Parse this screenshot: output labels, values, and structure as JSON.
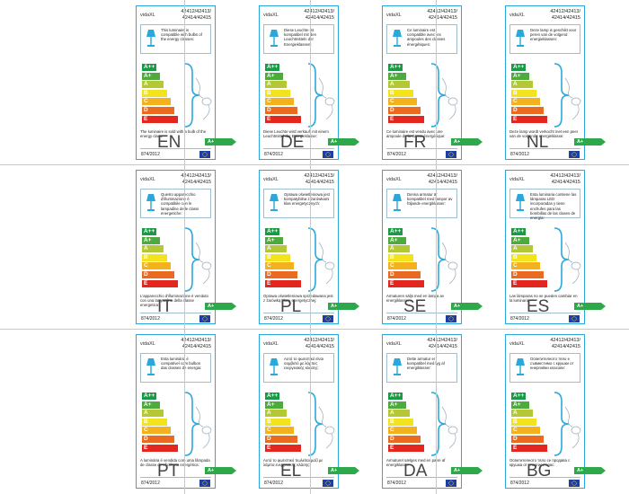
{
  "brand": "vidaXL",
  "model_line1": "42412/42413/",
  "model_line2": "42414/42415",
  "regulation": "874/2012",
  "energy_classes": [
    "A++",
    "A+",
    "A",
    "B",
    "C",
    "D",
    "E"
  ],
  "bottom_class": "A+",
  "colors": {
    "border": "#2aa8dc",
    "classes": [
      "#1a9a44",
      "#4daa3c",
      "#b4c835",
      "#f2e31c",
      "#f3b11d",
      "#ea6b20",
      "#e3261e"
    ],
    "eu_flag": "#1f3fa0"
  },
  "labels": [
    {
      "lang": "EN",
      "top": "This luminaire is compatible with bulbs of the energy classes:",
      "bottom": "The luminaire is sold with a bulb of the energy class:"
    },
    {
      "lang": "DE",
      "top": "Diese Leuchte ist kompatibel mit den Leuchtmitteln der Energieklassen:",
      "bottom": "Diese Leuchte wird verkauft mit einem Leuchtmittel der Energieklasse:"
    },
    {
      "lang": "FR",
      "top": "Ce luminaire est compatible avec les ampoules des classes énergétiques:",
      "bottom": "Ce luminaire est vendu avec une ampoule de la classe énergétique:"
    },
    {
      "lang": "NL",
      "top": "Deze lamp is geschikt voor peren van de volgend energieklassen:",
      "bottom": "Deze lamp wordt verkocht met een peer van de volgende energieklasse:"
    },
    {
      "lang": "IT",
      "top": "Questo apparecchio d'illuminazione è compatibile con le lampadine delle classi energetiche:",
      "bottom": "L'apparecchio d'illuminazione è venduto con una lampadina della classe energetica:"
    },
    {
      "lang": "PL",
      "top": "Oprawa oświetleniowa jest kompatybilna z żarówkami klas energetycznych:",
      "bottom": "Oprawa oświetleniowa sprzedawana jest z żarówką klasy energetycznej:"
    },
    {
      "lang": "SE",
      "top": "Denna armatur är kompatibel med lampor av följande energiklasser:",
      "bottom": "Armaturen säljs med en lampa av energiklassen:"
    },
    {
      "lang": "ES",
      "top": "Esta luminaria contiene las lámparas LED incorporadas y tiene enchufes para las bombillas de las clases de energía:",
      "bottom": "Las lámparas no se pueden cambiar en la luminaria"
    },
    {
      "lang": "PT",
      "top": "Esta luminária é compatível com bulbos das classes de energia:",
      "bottom": "A luminária é vendida com uma lâmpada de classe de eficiência energética:"
    },
    {
      "lang": "EL",
      "top": "Αυτό το φωτιστικό είναι συμβατό με λάμπες ενεργειακής κλάσης:",
      "bottom": "Αυτό το φωτιστικό πωλείται μαζί με λάμπα ενεργειακής κλάσης:"
    },
    {
      "lang": "DA",
      "top": "Dette armatur er kompatibel med lyg af energiklasser:",
      "bottom": "Armaturet sælges med en pære af energiklasse:"
    },
    {
      "lang": "BG",
      "top": "Осветителното тяло е съвместимо с крушки от енергийни класове:",
      "bottom": "Осветителното тяло се продава с крушка от енергиен клас:"
    }
  ]
}
